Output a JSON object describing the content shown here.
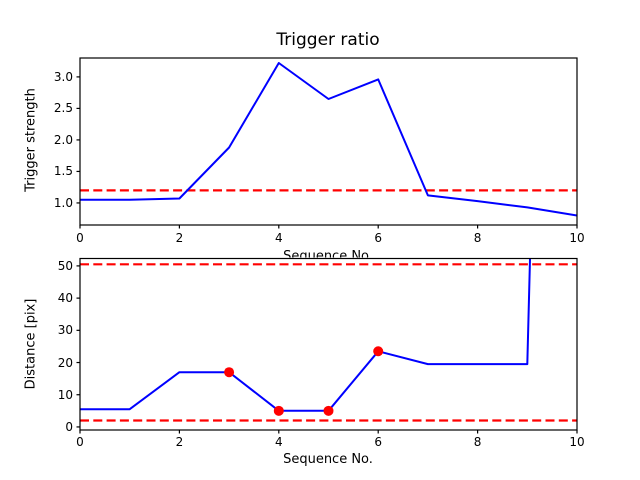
{
  "figure_title": "Trigger ratio",
  "colors": {
    "series_line": "#0000ff",
    "threshold_line": "#ff0000",
    "event_marker": "#ff0000",
    "text": "#000000",
    "spine": "#000000",
    "background": "#ffffff"
  },
  "chart_data": [
    {
      "type": "line",
      "title": "Trigger ratio",
      "xlabel": "Sequence No.",
      "ylabel": "Trigger strength",
      "xlim": [
        0,
        10
      ],
      "ylim": [
        0.65,
        3.3
      ],
      "xticks": [
        0,
        2,
        4,
        6,
        8,
        10
      ],
      "xtick_labels": [
        "0",
        "2",
        "4",
        "6",
        "8",
        "10"
      ],
      "yticks": [
        1.0,
        1.5,
        2.0,
        2.5,
        3.0
      ],
      "ytick_labels": [
        "1.0",
        "1.5",
        "2.0",
        "2.5",
        "3.0"
      ],
      "grid": false,
      "legend": null,
      "series": [
        {
          "name": "trigger-strength",
          "color": "#0000ff",
          "x": [
            0,
            1,
            2,
            3,
            4,
            5,
            6,
            7,
            8,
            9,
            10
          ],
          "y": [
            1.05,
            1.05,
            1.07,
            1.88,
            3.22,
            2.65,
            2.96,
            1.12,
            1.03,
            0.93,
            0.8
          ]
        }
      ],
      "threshold_lines": [
        {
          "y": 1.2,
          "color": "#ff0000",
          "style": "dashed"
        }
      ]
    },
    {
      "type": "line",
      "title": "",
      "xlabel": "Sequence No.",
      "ylabel": "Distance [pix]",
      "xlim": [
        0,
        10
      ],
      "ylim": [
        -0.95,
        52.3
      ],
      "xticks": [
        0,
        2,
        4,
        6,
        8,
        10
      ],
      "xtick_labels": [
        "0",
        "2",
        "4",
        "6",
        "8",
        "10"
      ],
      "yticks": [
        0,
        10,
        20,
        30,
        40,
        50
      ],
      "ytick_labels": [
        "0",
        "10",
        "20",
        "30",
        "40",
        "50"
      ],
      "grid": false,
      "legend": null,
      "series": [
        {
          "name": "distance",
          "color": "#0000ff",
          "x": [
            0,
            1,
            2,
            3,
            4,
            5,
            6,
            7,
            8,
            9,
            9.1
          ],
          "y": [
            5.5,
            5.5,
            17,
            17,
            5,
            5,
            23.5,
            19.5,
            19.5,
            19.5,
            80
          ]
        }
      ],
      "markers": {
        "name": "trigger-event-markers",
        "color": "#ff0000",
        "points": [
          [
            3,
            17
          ],
          [
            4,
            5
          ],
          [
            5,
            5
          ],
          [
            6,
            23.5
          ]
        ]
      },
      "threshold_lines": [
        {
          "y": 50.5,
          "color": "#ff0000",
          "style": "dashed"
        },
        {
          "y": 2.0,
          "color": "#ff0000",
          "style": "dashed"
        }
      ]
    }
  ]
}
